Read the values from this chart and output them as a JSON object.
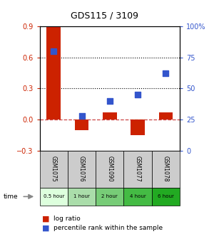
{
  "title": "GDS115 / 3109",
  "samples": [
    "GSM1075",
    "GSM1076",
    "GSM1090",
    "GSM1077",
    "GSM1078"
  ],
  "time_labels": [
    "0.5 hour",
    "1 hour",
    "2 hour",
    "4 hour",
    "6 hour"
  ],
  "log_ratio": [
    0.9,
    -0.1,
    0.07,
    -0.15,
    0.07
  ],
  "percentile": [
    80,
    28,
    40,
    45,
    62
  ],
  "ylim_left": [
    -0.3,
    0.9
  ],
  "ylim_right": [
    0,
    100
  ],
  "yticks_left": [
    -0.3,
    0,
    0.3,
    0.6,
    0.9
  ],
  "yticks_right": [
    0,
    25,
    50,
    75,
    100
  ],
  "hlines": [
    0.3,
    0.6
  ],
  "bar_color": "#cc2200",
  "dot_color": "#3355cc",
  "zero_line_color": "#cc4444",
  "hline_color": "#000000",
  "title_color": "#000000",
  "left_tick_color": "#cc2200",
  "right_tick_color": "#3355cc",
  "time_colors": [
    "#ddffdd",
    "#aaddaa",
    "#77cc77",
    "#44bb44",
    "#22aa22"
  ],
  "sample_bg_color": "#cccccc",
  "bar_width": 0.5,
  "figsize": [
    2.93,
    3.36
  ],
  "dpi": 100
}
